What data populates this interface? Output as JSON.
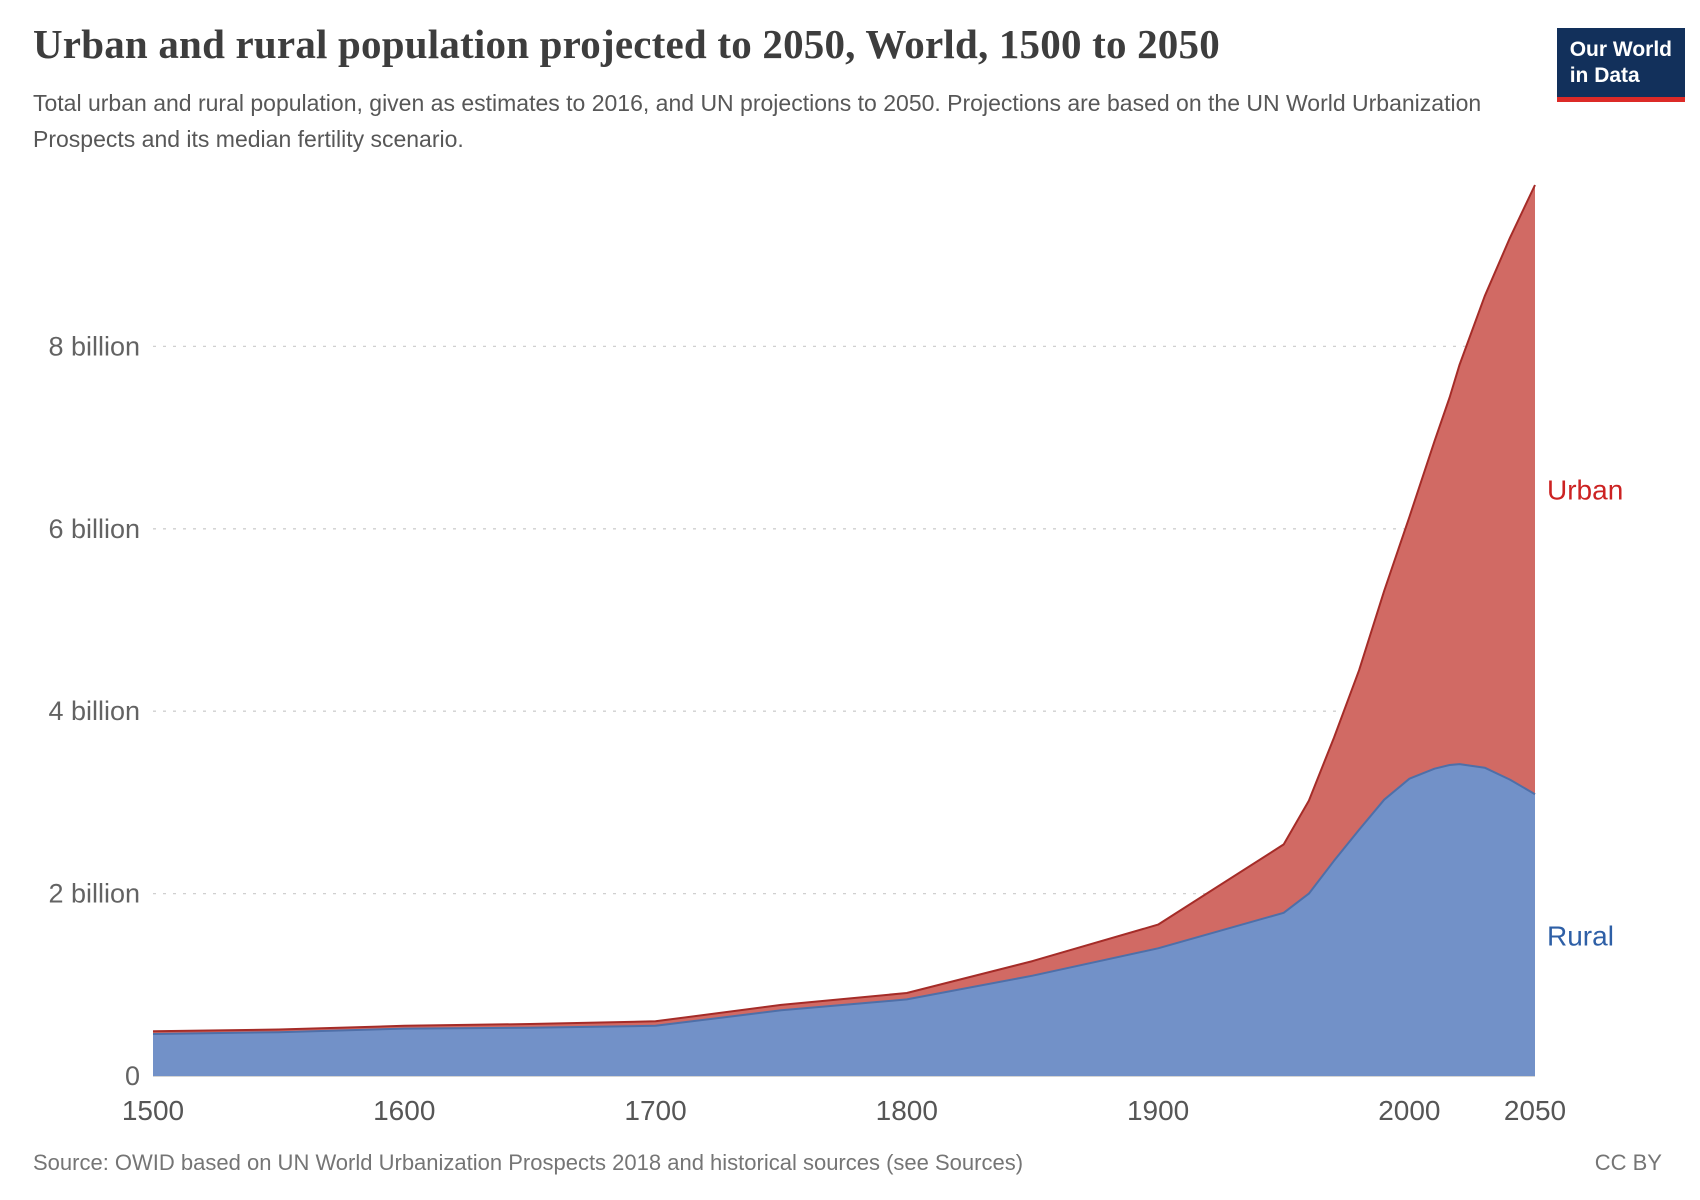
{
  "header": {
    "title": "Urban and rural population projected to 2050, World, 1500 to 2050",
    "subtitle": "Total urban and rural population, given as estimates to 2016, and UN projections to 2050. Projections are based on the UN World Urbanization Prospects and its median fertility scenario.",
    "logo": {
      "line1": "Our World",
      "line2": "in Data"
    }
  },
  "footer": {
    "source": "Source: OWID based on UN World Urbanization Prospects 2018 and historical sources (see Sources)",
    "license": "CC BY"
  },
  "chart_data": {
    "type": "area",
    "stacked": true,
    "title": "Urban and rural population projected to 2050, World, 1500 to 2050",
    "xlabel": "",
    "ylabel": "",
    "unit": "billion",
    "x_range": [
      1500,
      2050
    ],
    "ylim": [
      0,
      10
    ],
    "grid": true,
    "grid_color": "#cfcfcf",
    "axis_color": "#bbbbbb",
    "xticks": [
      1500,
      1600,
      1700,
      1800,
      1900,
      2000,
      2050
    ],
    "yticks": [
      {
        "value": 0,
        "label": "0"
      },
      {
        "value": 2,
        "label": "2 billion"
      },
      {
        "value": 4,
        "label": "4 billion"
      },
      {
        "value": 6,
        "label": "6 billion"
      },
      {
        "value": 8,
        "label": "8 billion"
      }
    ],
    "x": [
      1500,
      1550,
      1600,
      1650,
      1700,
      1750,
      1800,
      1850,
      1900,
      1950,
      1960,
      1970,
      1980,
      1990,
      2000,
      2010,
      2016,
      2020,
      2030,
      2040,
      2050
    ],
    "series": [
      {
        "name": "Rural",
        "color": "#7291c8",
        "edge_color": "#4e6fa8",
        "label_color": "#2e5fa6",
        "label_value": 1.53,
        "values": [
          0.46,
          0.48,
          0.52,
          0.53,
          0.55,
          0.72,
          0.84,
          1.1,
          1.4,
          1.79,
          2.0,
          2.36,
          2.7,
          3.03,
          3.26,
          3.37,
          3.41,
          3.42,
          3.38,
          3.25,
          3.09
        ]
      },
      {
        "name": "Urban",
        "color": "#d16a64",
        "edge_color": "#a52c28",
        "label_color": "#cc2222",
        "label_value": 6.42,
        "values": [
          0.03,
          0.03,
          0.03,
          0.04,
          0.05,
          0.06,
          0.07,
          0.16,
          0.26,
          0.75,
          1.02,
          1.35,
          1.75,
          2.29,
          2.87,
          3.59,
          4.03,
          4.38,
          5.17,
          5.94,
          6.68
        ]
      }
    ]
  }
}
